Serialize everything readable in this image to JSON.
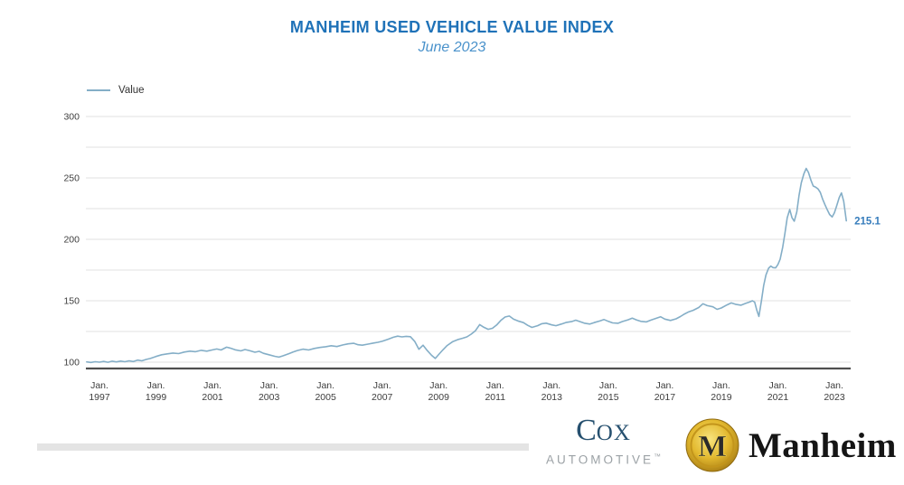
{
  "header": {
    "title": "MANHEIM USED VEHICLE VALUE INDEX",
    "subtitle": "June 2023"
  },
  "legend": {
    "label": "Value"
  },
  "footer": {
    "cox": {
      "c": "C",
      "ox": "OX",
      "line2": "AUTOMOTIVE",
      "tm": "™"
    },
    "manheim": {
      "monogram": "M",
      "name": "Manheim"
    }
  },
  "colors": {
    "title": "#1F72B8",
    "subtitle": "#4A92CB",
    "line": "#84AEC7",
    "end_label": "#377DBC",
    "grid": "#E2E2E2",
    "baseline": "#4F4F4F",
    "tick_text": "#3D3D3D",
    "cox_navy": "#26506F",
    "cox_gray": "#9CA2A6",
    "manheim_gold": "#DCAE28",
    "divider": "#E4E4E4"
  },
  "chart_data": {
    "type": "line",
    "title": "MANHEIM USED VEHICLE VALUE INDEX",
    "subtitle": "June 2023",
    "legend_entries": [
      "Value"
    ],
    "legend_position": "top-left",
    "grid": "horizontal",
    "grid_step": 25,
    "ylim": [
      100,
      300
    ],
    "yticks": [
      100,
      150,
      200,
      250,
      300
    ],
    "xtick_month": "Jan.",
    "xtick_years": [
      1997,
      1999,
      2001,
      2003,
      2005,
      2007,
      2009,
      2011,
      2013,
      2015,
      2017,
      2019,
      2021,
      2023
    ],
    "end_label": "215.1",
    "end_value": 215.1,
    "series": [
      {
        "name": "Value",
        "x": [
          1996.55,
          1996.7,
          1996.85,
          1997.0,
          1997.15,
          1997.3,
          1997.45,
          1997.6,
          1997.75,
          1997.9,
          1998.05,
          1998.2,
          1998.35,
          1998.5,
          1998.65,
          1998.8,
          1999.0,
          1999.2,
          1999.4,
          1999.6,
          1999.8,
          2000.0,
          2000.2,
          2000.4,
          2000.6,
          2000.8,
          2001.0,
          2001.15,
          2001.3,
          2001.5,
          2001.65,
          2001.8,
          2002.0,
          2002.15,
          2002.3,
          2002.5,
          2002.65,
          2002.8,
          2003.0,
          2003.2,
          2003.35,
          2003.5,
          2003.7,
          2003.85,
          2004.0,
          2004.2,
          2004.4,
          2004.6,
          2004.8,
          2005.0,
          2005.2,
          2005.4,
          2005.6,
          2005.8,
          2006.0,
          2006.15,
          2006.3,
          2006.5,
          2006.7,
          2006.85,
          2007.0,
          2007.2,
          2007.4,
          2007.55,
          2007.7,
          2007.85,
          2008.0,
          2008.15,
          2008.3,
          2008.45,
          2008.6,
          2008.75,
          2008.88,
          2009.0,
          2009.15,
          2009.3,
          2009.5,
          2009.7,
          2009.85,
          2010.0,
          2010.15,
          2010.3,
          2010.45,
          2010.6,
          2010.75,
          2010.9,
          2011.05,
          2011.2,
          2011.35,
          2011.5,
          2011.65,
          2011.8,
          2012.0,
          2012.15,
          2012.3,
          2012.5,
          2012.65,
          2012.8,
          2013.0,
          2013.15,
          2013.35,
          2013.5,
          2013.7,
          2013.85,
          2014.0,
          2014.15,
          2014.35,
          2014.5,
          2014.7,
          2014.85,
          2015.0,
          2015.15,
          2015.35,
          2015.5,
          2015.7,
          2015.85,
          2016.0,
          2016.15,
          2016.35,
          2016.5,
          2016.7,
          2016.85,
          2017.0,
          2017.2,
          2017.4,
          2017.55,
          2017.7,
          2017.85,
          2018.0,
          2018.2,
          2018.35,
          2018.5,
          2018.7,
          2018.85,
          2019.0,
          2019.2,
          2019.35,
          2019.5,
          2019.7,
          2019.85,
          2020.0,
          2020.1,
          2020.18,
          2020.26,
          2020.33,
          2020.42,
          2020.5,
          2020.58,
          2020.67,
          2020.75,
          2020.83,
          2020.92,
          2021.0,
          2021.08,
          2021.17,
          2021.25,
          2021.33,
          2021.42,
          2021.5,
          2021.58,
          2021.67,
          2021.75,
          2021.83,
          2021.92,
          2022.0,
          2022.08,
          2022.17,
          2022.25,
          2022.33,
          2022.42,
          2022.5,
          2022.58,
          2022.67,
          2022.75,
          2022.83,
          2022.92,
          2023.0,
          2023.08,
          2023.17,
          2023.25,
          2023.33,
          2023.42
        ],
        "values": [
          100.2,
          99.8,
          100.4,
          100.0,
          100.6,
          99.9,
          100.8,
          100.2,
          100.9,
          100.4,
          101.1,
          100.5,
          101.7,
          101.1,
          102.2,
          103.0,
          104.6,
          106.0,
          106.8,
          107.4,
          107.0,
          108.2,
          109.0,
          108.5,
          109.6,
          109.0,
          110.0,
          110.7,
          109.9,
          112.2,
          111.3,
          110.1,
          109.2,
          110.3,
          109.5,
          108.1,
          108.8,
          107.2,
          106.0,
          104.8,
          104.1,
          105.2,
          106.9,
          108.3,
          109.5,
          110.6,
          109.9,
          111.2,
          112.0,
          112.6,
          113.4,
          112.7,
          114.0,
          114.9,
          115.4,
          114.2,
          113.8,
          114.7,
          115.6,
          116.2,
          117.0,
          118.6,
          120.3,
          121.2,
          120.6,
          121.0,
          120.7,
          117.0,
          110.5,
          113.8,
          109.4,
          105.6,
          103.0,
          106.2,
          110.0,
          113.5,
          116.8,
          118.5,
          119.5,
          120.6,
          122.8,
          125.6,
          130.6,
          128.4,
          126.8,
          127.6,
          130.2,
          134.0,
          136.8,
          137.6,
          135.0,
          133.6,
          132.2,
          130.0,
          128.3,
          129.7,
          131.3,
          131.8,
          130.4,
          129.7,
          131.1,
          132.3,
          133.0,
          134.2,
          133.0,
          131.8,
          131.0,
          132.2,
          133.5,
          134.7,
          133.2,
          132.0,
          131.7,
          133.1,
          134.5,
          135.8,
          134.4,
          133.2,
          132.8,
          134.2,
          135.7,
          137.0,
          135.1,
          134.0,
          135.3,
          137.1,
          139.3,
          141.0,
          142.2,
          144.5,
          147.6,
          146.0,
          145.1,
          143.0,
          144.1,
          146.6,
          148.2,
          147.1,
          146.4,
          147.8,
          149.0,
          150.0,
          148.9,
          142.0,
          137.2,
          150.0,
          162.5,
          171.0,
          176.5,
          178.2,
          177.0,
          176.8,
          179.5,
          183.8,
          193.5,
          205.0,
          217.5,
          224.3,
          217.6,
          214.8,
          222.3,
          235.8,
          246.0,
          253.2,
          257.7,
          254.5,
          248.0,
          243.4,
          242.6,
          241.0,
          238.2,
          232.9,
          228.0,
          224.0,
          220.2,
          218.2,
          221.6,
          227.2,
          233.9,
          237.8,
          231.0,
          215.1
        ]
      }
    ]
  }
}
